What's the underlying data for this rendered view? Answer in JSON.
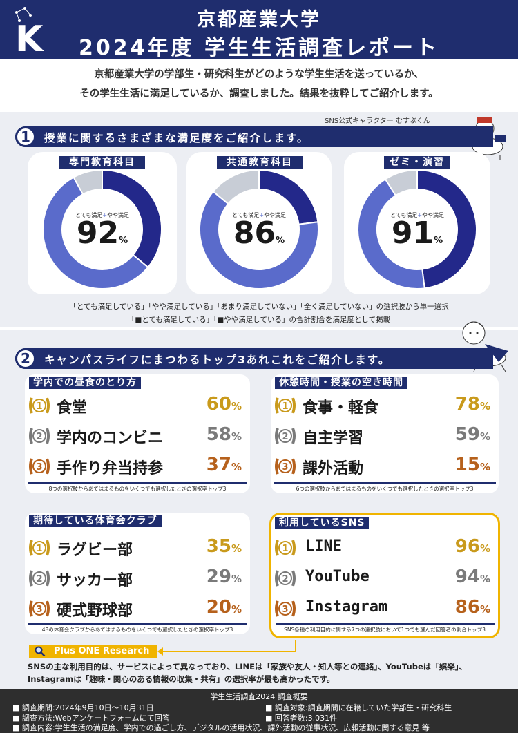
{
  "header": {
    "title_line1": "京都産業大学",
    "title_line2": "2024年度 学生生活調査レポート"
  },
  "intro": {
    "line1": "京都産業大学の学部生・研究科生がどのような学生生活を送っているか、",
    "line2": "その学生生活に満足しているか、調査しました。結果を抜粋してご紹介します。"
  },
  "character_label": "SNS公式キャラクター むすぶくん",
  "section1": {
    "number": "1",
    "heading": "授業に関するさまざまな満足度をご紹介します。",
    "donut_label_a": "とても満足",
    "donut_label_sep": "+",
    "donut_label_b": "やや満足",
    "unit": "%",
    "cards": [
      {
        "title": "専門教育科目",
        "value": "92"
      },
      {
        "title": "共通教育科目",
        "value": "86"
      },
      {
        "title": "ゼミ・演習",
        "value": "91"
      }
    ],
    "note1": "「とても満足している」「やや満足している」「あまり満足していない」「全く満足していない」の選択肢から単一選択",
    "note2": "「■とても満足している」「■やや満足している」の合計割合を満足度として掲載"
  },
  "section2": {
    "number": "2",
    "heading": "キャンパスライフにまつわるトップ3あれこれをご紹介します。",
    "unit": "%",
    "panels": [
      {
        "title": "学内での昼食のとり方",
        "items": [
          {
            "rank": "1",
            "name": "食堂",
            "pct": "60"
          },
          {
            "rank": "2",
            "name": "学内のコンビニ",
            "pct": "58"
          },
          {
            "rank": "3",
            "name": "手作り弁当持参",
            "pct": "37"
          }
        ],
        "footnote": "8つの選択肢からあてはまるものをいくつでも選択したときの選択率トップ3"
      },
      {
        "title": "休憩時間・授業の空き時間",
        "items": [
          {
            "rank": "1",
            "name": "食事・軽食",
            "pct": "78"
          },
          {
            "rank": "2",
            "name": "自主学習",
            "pct": "59"
          },
          {
            "rank": "3",
            "name": "課外活動",
            "pct": "15"
          }
        ],
        "footnote": "6つの選択肢からあてはまるものをいくつでも選択したときの選択率トップ3"
      },
      {
        "title": "期待している体育会クラブ",
        "items": [
          {
            "rank": "1",
            "name": "ラグビー部",
            "pct": "35"
          },
          {
            "rank": "2",
            "name": "サッカー部",
            "pct": "29"
          },
          {
            "rank": "3",
            "name": "硬式野球部",
            "pct": "20"
          }
        ],
        "footnote": "48の体育会クラブからあてはまるものをいくつでも選択したときの選択率トップ3"
      },
      {
        "title": "利用しているSNS",
        "items": [
          {
            "rank": "1",
            "name": "LINE",
            "pct": "96"
          },
          {
            "rank": "2",
            "name": "YouTube",
            "pct": "94"
          },
          {
            "rank": "3",
            "name": "Instagram",
            "pct": "86"
          }
        ],
        "footnote": "SNS各種の利用目的に関する7つの選択肢において1つでも選んだ回答者の割合トップ3"
      }
    ]
  },
  "plus_one": {
    "label": "Plus ONE Research",
    "line1": "SNSの主な利用目的は、サービスによって異なっており、LINEは「家族や友人・知人等との連絡」、YouTubeは「娯楽」、",
    "line2": "Instagramは「趣味・関心のある情報の収集・共有」の選択率が最も高かったです。"
  },
  "footer": {
    "title": "学生生活調査2024 調査概要",
    "period": "調査期間:2024年9月10日〜10月31日",
    "target": "調査対象:調査期間に在籍していた学部生・研究科生",
    "method": "調査方法:Webアンケートフォームにて回答",
    "respondents": "回答者数:3,031件",
    "content": "調査内容:学生生活の満足度、学内での過ごし方、デジタルの活用状況、課外活動の従事状況、広報活動に関する意見 等"
  },
  "colors": {
    "navy": "#1f2d6e",
    "dark_slice": "#23288a",
    "mid_slice": "#5a6bcb",
    "gray_slice": "#c8cdd6",
    "gold": "#c99a1c",
    "silver": "#7a7a7a",
    "bronze": "#b6611c",
    "yellow": "#f0b400"
  },
  "chart_data": [
    {
      "type": "pie",
      "title": "専門教育科目",
      "categories": [
        "とても満足",
        "やや満足",
        "その他"
      ],
      "values": [
        36,
        56,
        8
      ],
      "total_label": "92%"
    },
    {
      "type": "pie",
      "title": "共通教育科目",
      "categories": [
        "とても満足",
        "やや満足",
        "その他"
      ],
      "values": [
        23,
        63,
        14
      ],
      "total_label": "86%"
    },
    {
      "type": "pie",
      "title": "ゼミ・演習",
      "categories": [
        "とても満足",
        "やや満足",
        "その他"
      ],
      "values": [
        48,
        43,
        9
      ],
      "total_label": "91%"
    }
  ]
}
